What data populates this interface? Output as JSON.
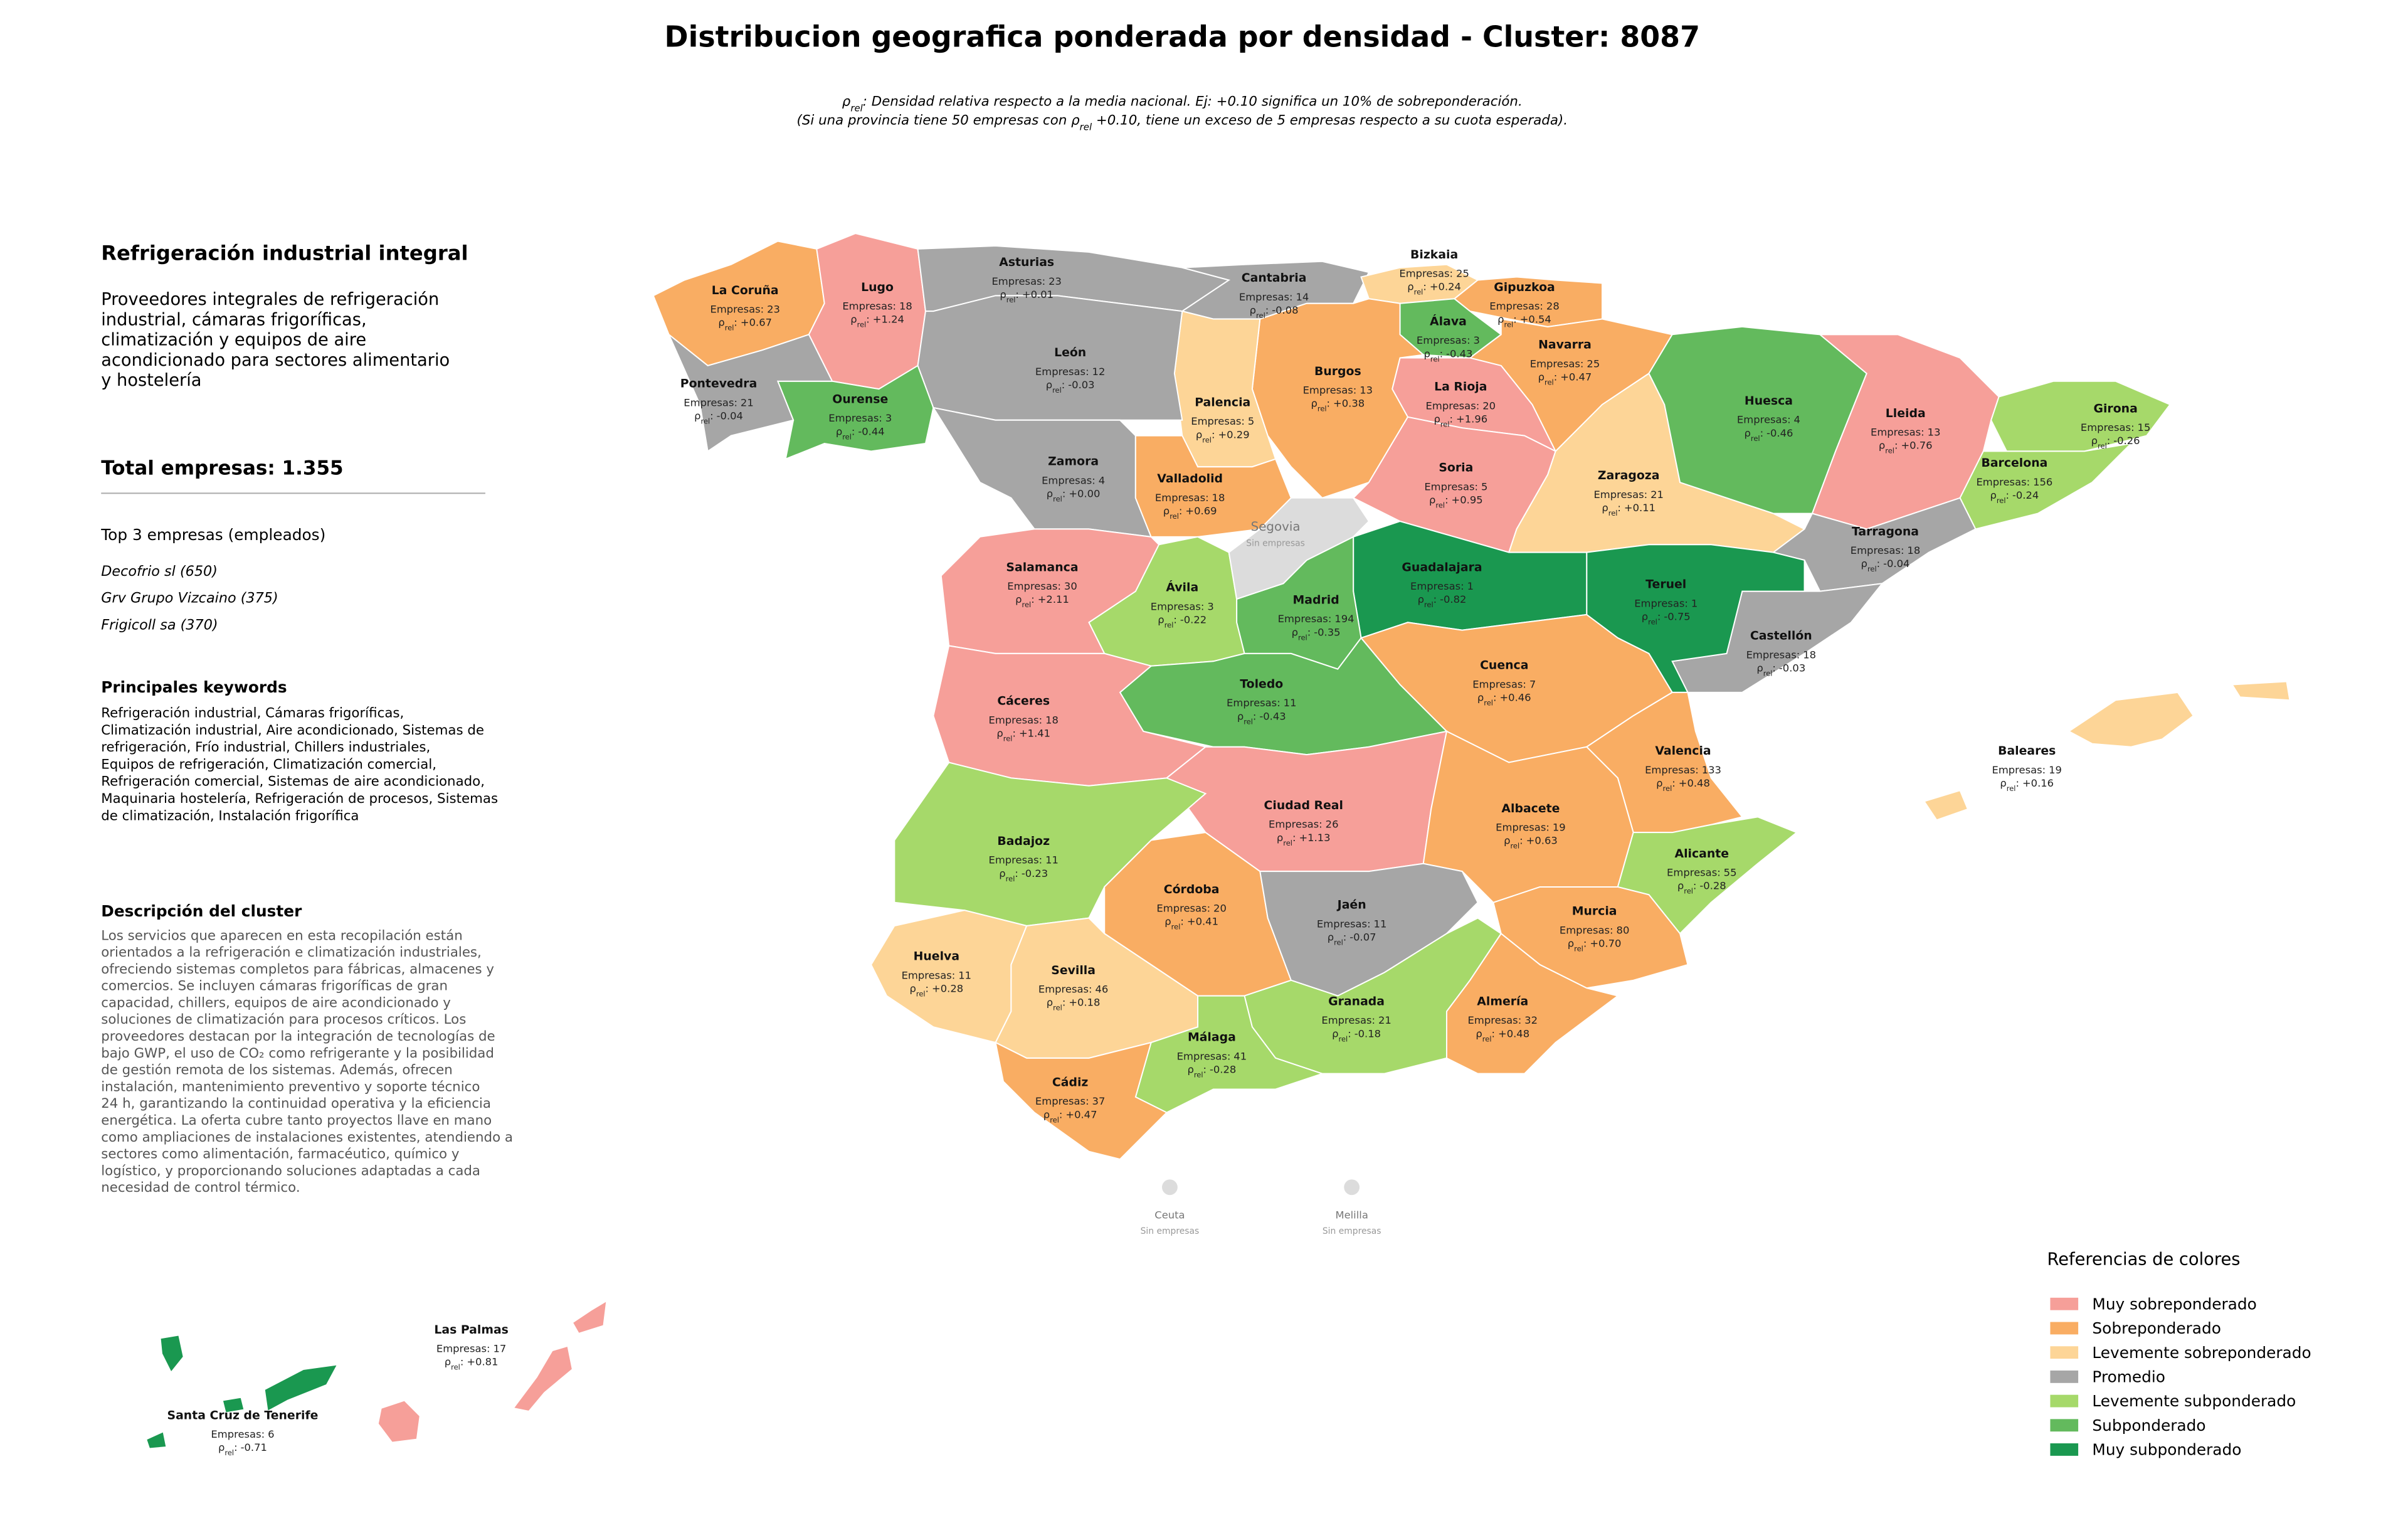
{
  "title": "Distribucion geografica ponderada por densidad - Cluster: 8087",
  "subtitle": [
    [
      {
        "text": "ρ"
      },
      {
        "sub": "rel"
      },
      {
        "text": ": Densidad relativa respecto a la media nacional. Ej: +0.10 significa un 10% de sobreponderación."
      }
    ],
    [
      {
        "text": "(Si una provincia tiene 50 empresas con "
      },
      {
        "text": "ρ"
      },
      {
        "sub": "rel"
      },
      {
        "text": " +0.10, tiene un exceso de 5 empresas respecto a su cuota esperada)."
      }
    ]
  ],
  "panel": {
    "heading": "Refrigeración industrial integral",
    "intro": [
      "Proveedores integrales de refrigeración",
      "industrial, cámaras frigoríficas,",
      "climatización y equipos de aire",
      "acondicionado para sectores alimentario",
      "y hostelería"
    ],
    "total": "Total empresas: 1.355",
    "top_title": "Top 3 empresas (empleados)",
    "top": [
      "Decofrio sl (650)",
      "Grv Grupo Vizcaino (375)",
      "Frigicoll sa (370)"
    ],
    "keywords_title": "Principales keywords",
    "keywords": [
      "Refrigeración industrial, Cámaras frigoríficas,",
      "Climatización industrial, Aire acondicionado, Sistemas de",
      "refrigeración, Frío industrial, Chillers industriales,",
      "Equipos de refrigeración, Climatización comercial,",
      "Refrigeración comercial, Sistemas de aire acondicionado,",
      "Maquinaria hostelería, Refrigeración de procesos, Sistemas",
      "de climatización, Instalación frigorífica"
    ],
    "description_title": "Descripción del cluster",
    "description": [
      "Los servicios que aparecen en esta recopilación están",
      "orientados a la refrigeración e climatización industriales,",
      "ofreciendo sistemas completos para fábricas, almacenes y",
      "comercios. Se incluyen cámaras frigoríficas de gran",
      "capacidad, chillers, equipos de aire acondicionado y",
      "soluciones de climatización para procesos críticos. Los",
      "proveedores destacan por la integración de tecnologías de",
      "bajo GWP, el uso de CO₂ como refrigerante y la posibilidad",
      "de gestión remota de los sistemas. Además, ofrecen",
      "instalación, mantenimiento preventivo y soporte técnico",
      "24 h, garantizando la continuidad operativa y la eficiencia",
      "energética. La oferta cubre tanto proyectos llave en mano",
      "como ampliaciones de instalaciones existentes, atendiendo a",
      "sectores como alimentación, farmacéutico, químico y",
      "logístico, y proporcionando soluciones adaptadas a cada",
      "necesidad de control térmico."
    ]
  },
  "empresas_label": "Empresas:",
  "rho_symbol": "ρ",
  "rho_sub": "rel",
  "rho_sep": ":",
  "provinces": [
    {
      "name": "La Coruña",
      "empresas": 23,
      "rho": "+0.67",
      "color": "#f9ad63"
    },
    {
      "name": "Lugo",
      "empresas": 18,
      "rho": "+1.24",
      "color": "#f69f99"
    },
    {
      "name": "Asturias",
      "empresas": 23,
      "rho": "+0.01",
      "color": "#a6a6a6"
    },
    {
      "name": "Cantabria",
      "empresas": 14,
      "rho": "-0.08",
      "color": "#a6a6a6"
    },
    {
      "name": "Bizkaia",
      "empresas": 25,
      "rho": "+0.24",
      "color": "#fdd597"
    },
    {
      "name": "Gipuzkoa",
      "empresas": 28,
      "rho": "+0.54",
      "color": "#f9ad63"
    },
    {
      "name": "Álava",
      "empresas": 3,
      "rho": "-0.43",
      "color": "#63ba5d"
    },
    {
      "name": "Navarra",
      "empresas": 25,
      "rho": "+0.47",
      "color": "#f9ad63"
    },
    {
      "name": "La Rioja",
      "empresas": 20,
      "rho": "+1.96",
      "color": "#f69f99"
    },
    {
      "name": "Burgos",
      "empresas": 13,
      "rho": "+0.38",
      "color": "#f9ad63"
    },
    {
      "name": "Palencia",
      "empresas": 5,
      "rho": "+0.29",
      "color": "#fdd597"
    },
    {
      "name": "León",
      "empresas": 12,
      "rho": "-0.03",
      "color": "#a6a6a6"
    },
    {
      "name": "Ourense",
      "empresas": 3,
      "rho": "-0.44",
      "color": "#63ba5d"
    },
    {
      "name": "Pontevedra",
      "empresas": 21,
      "rho": "-0.04",
      "color": "#a6a6a6"
    },
    {
      "name": "Zamora",
      "empresas": 4,
      "rho": "+0.00",
      "color": "#a6a6a6"
    },
    {
      "name": "Valladolid",
      "empresas": 18,
      "rho": "+0.69",
      "color": "#f9ad63"
    },
    {
      "name": "Soria",
      "empresas": 5,
      "rho": "+0.95",
      "color": "#f69f99"
    },
    {
      "name": "Zaragoza",
      "empresas": 21,
      "rho": "+0.11",
      "color": "#fdd597"
    },
    {
      "name": "Huesca",
      "empresas": 4,
      "rho": "-0.46",
      "color": "#63ba5d"
    },
    {
      "name": "Lleida",
      "empresas": 13,
      "rho": "+0.76",
      "color": "#f69f99"
    },
    {
      "name": "Girona",
      "empresas": 15,
      "rho": "-0.26",
      "color": "#a6d96a"
    },
    {
      "name": "Barcelona",
      "empresas": 156,
      "rho": "-0.24",
      "color": "#a6d96a"
    },
    {
      "name": "Tarragona",
      "empresas": 18,
      "rho": "-0.04",
      "color": "#a6a6a6"
    },
    {
      "name": "Castellón",
      "empresas": 18,
      "rho": "-0.03",
      "color": "#a6a6a6"
    },
    {
      "name": "Teruel",
      "empresas": 1,
      "rho": "-0.75",
      "color": "#1a9850"
    },
    {
      "name": "Guadalajara",
      "empresas": 1,
      "rho": "-0.82",
      "color": "#1a9850"
    },
    {
      "name": "Madrid",
      "empresas": 194,
      "rho": "-0.35",
      "color": "#63ba5d"
    },
    {
      "name": "Ávila",
      "empresas": 3,
      "rho": "-0.22",
      "color": "#a6d96a"
    },
    {
      "name": "Salamanca",
      "empresas": 30,
      "rho": "+2.11",
      "color": "#f69f99"
    },
    {
      "name": "Cuenca",
      "empresas": 7,
      "rho": "+0.46",
      "color": "#f9ad63"
    },
    {
      "name": "Toledo",
      "empresas": 11,
      "rho": "-0.43",
      "color": "#63ba5d"
    },
    {
      "name": "Cáceres",
      "empresas": 18,
      "rho": "+1.41",
      "color": "#f69f99"
    },
    {
      "name": "Valencia",
      "empresas": 133,
      "rho": "+0.48",
      "color": "#f9ad63"
    },
    {
      "name": "Ciudad Real",
      "empresas": 26,
      "rho": "+1.13",
      "color": "#f69f99"
    },
    {
      "name": "Albacete",
      "empresas": 19,
      "rho": "+0.63",
      "color": "#f9ad63"
    },
    {
      "name": "Badajoz",
      "empresas": 11,
      "rho": "-0.23",
      "color": "#a6d96a"
    },
    {
      "name": "Alicante",
      "empresas": 55,
      "rho": "-0.28",
      "color": "#a6d96a"
    },
    {
      "name": "Córdoba",
      "empresas": 20,
      "rho": "+0.41",
      "color": "#f9ad63"
    },
    {
      "name": "Jaén",
      "empresas": 11,
      "rho": "-0.07",
      "color": "#a6a6a6"
    },
    {
      "name": "Murcia",
      "empresas": 80,
      "rho": "+0.70",
      "color": "#f9ad63"
    },
    {
      "name": "Huelva",
      "empresas": 11,
      "rho": "+0.28",
      "color": "#fdd597"
    },
    {
      "name": "Sevilla",
      "empresas": 46,
      "rho": "+0.18",
      "color": "#fdd597"
    },
    {
      "name": "Granada",
      "empresas": 21,
      "rho": "-0.18",
      "color": "#a6d96a"
    },
    {
      "name": "Almería",
      "empresas": 32,
      "rho": "+0.48",
      "color": "#f9ad63"
    },
    {
      "name": "Málaga",
      "empresas": 41,
      "rho": "-0.28",
      "color": "#a6d96a"
    },
    {
      "name": "Cádiz",
      "empresas": 37,
      "rho": "+0.47",
      "color": "#f9ad63"
    },
    {
      "name": "Baleares",
      "empresas": 19,
      "rho": "+0.16",
      "color": "#fdd597"
    },
    {
      "name": "Las Palmas",
      "empresas": 17,
      "rho": "+0.81",
      "color": "#f69f99"
    },
    {
      "name": "Santa Cruz de Tenerife",
      "empresas": 6,
      "rho": "-0.71",
      "color": "#1a9850"
    }
  ],
  "no_data": [
    {
      "name": "Segovia",
      "note": "Sin empresas",
      "color": "#dcdcdc"
    },
    {
      "name": "Ceuta",
      "note": "Sin empresas",
      "color": "#dcdcdc"
    },
    {
      "name": "Melilla",
      "note": "Sin empresas",
      "color": "#dcdcdc"
    }
  ],
  "legend": {
    "title": "Referencias de colores",
    "items": [
      {
        "label": "Muy sobreponderado",
        "color": "#f69f99"
      },
      {
        "label": "Sobreponderado",
        "color": "#f9ad63"
      },
      {
        "label": "Levemente sobreponderado",
        "color": "#fdd597"
      },
      {
        "label": "Promedio",
        "color": "#a6a6a6"
      },
      {
        "label": "Levemente subponderado",
        "color": "#a6d96a"
      },
      {
        "label": "Subponderado",
        "color": "#63ba5d"
      },
      {
        "label": "Muy subponderado",
        "color": "#1a9850"
      }
    ]
  }
}
